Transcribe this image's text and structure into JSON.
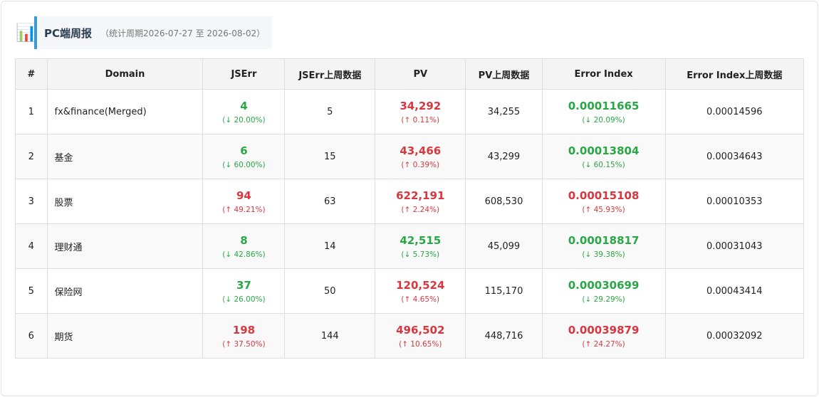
{
  "header": {
    "icon": "📊",
    "title": "PC端周报",
    "period": "（统计周期2026-07-27 至 2026-08-02）"
  },
  "table": {
    "columns": [
      "#",
      "Domain",
      "JSErr",
      "JSErr上周数据",
      "PV",
      "PV上周数据",
      "Error Index",
      "Error Index上周数据"
    ],
    "rows": [
      [
        "1",
        "fx&finance(Merged)",
        {
          "value": "4",
          "change": "(↓ 20.00%)"
        },
        "5",
        {
          "value": "34,292",
          "change": "(↑ 0.11%)"
        },
        "34,255",
        {
          "value": "0.00011665",
          "change": "(↓ 20.09%)"
        },
        "0.00014596"
      ],
      [
        "2",
        "基金",
        {
          "value": "6",
          "change": "(↓ 60.00%)"
        },
        "15",
        {
          "value": "43,466",
          "change": "(↑ 0.39%)"
        },
        "43,299",
        {
          "value": "0.00013804",
          "change": "(↓ 60.15%)"
        },
        "0.00034643"
      ],
      [
        "3",
        "股票",
        {
          "value": "94",
          "change": "(↑ 49.21%)"
        },
        "63",
        {
          "value": "622,191",
          "change": "(↑ 2.24%)"
        },
        "608,530",
        {
          "value": "0.00015108",
          "change": "(↑ 45.93%)"
        },
        "0.00010353"
      ],
      [
        "4",
        "理财通",
        {
          "value": "8",
          "change": "(↓ 42.86%)"
        },
        "14",
        {
          "value": "42,515",
          "change": "(↓ 5.73%)"
        },
        "45,099",
        {
          "value": "0.00018817",
          "change": "(↓ 39.38%)"
        },
        "0.00031043"
      ],
      [
        "5",
        "保险网",
        {
          "value": "37",
          "change": "(↓ 26.00%)"
        },
        "50",
        {
          "value": "120,524",
          "change": "(↑ 4.65%)"
        },
        "115,170",
        {
          "value": "0.00030699",
          "change": "(↓ 29.29%)"
        },
        "0.00043414"
      ],
      [
        "6",
        "期货",
        {
          "value": "198",
          "change": "(↑ 37.50%)"
        },
        "144",
        {
          "value": "496,502",
          "change": "(↑ 10.65%)"
        },
        "448,716",
        {
          "value": "0.00039879",
          "change": "(↑ 24.27%)"
        },
        "0.00032092"
      ]
    ]
  }
}
